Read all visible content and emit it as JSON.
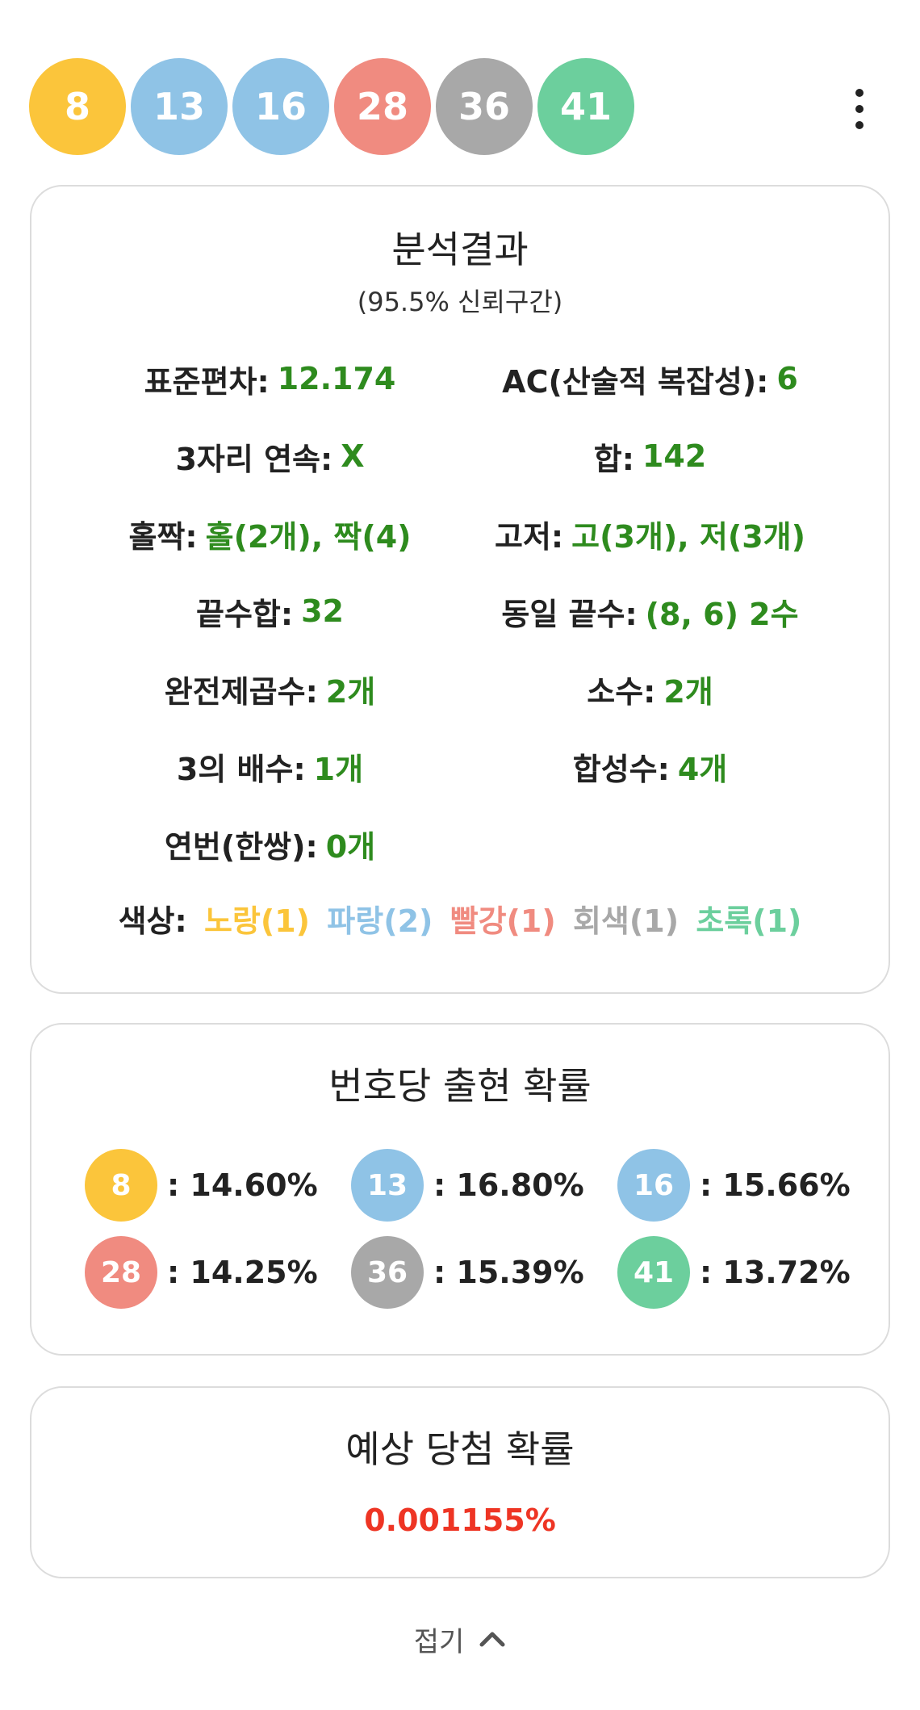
{
  "colors": {
    "yellow": "#fbc53b",
    "blue": "#8fc3e6",
    "red": "#f08b80",
    "gray": "#a8a8a8",
    "green": "#6ccf9d",
    "value_green": "#2e8b1e",
    "win_red": "#ee3524"
  },
  "balls": [
    {
      "number": "8",
      "color": "#fbc53b"
    },
    {
      "number": "13",
      "color": "#8fc3e6"
    },
    {
      "number": "16",
      "color": "#8fc3e6"
    },
    {
      "number": "28",
      "color": "#f08b80"
    },
    {
      "number": "36",
      "color": "#a8a8a8"
    },
    {
      "number": "41",
      "color": "#6ccf9d"
    }
  ],
  "menu_icon": "more-vertical-icon",
  "analysis": {
    "title": "분석결과",
    "subtitle": "(95.5% 신뢰구간)",
    "stats": [
      {
        "label": "표준편차:",
        "value": "12.174"
      },
      {
        "label": "AC(산술적 복잡성):",
        "value": "6"
      },
      {
        "label": "3자리 연속:",
        "value": "X"
      },
      {
        "label": "합:",
        "value": "142"
      },
      {
        "label": "홀짝:",
        "value": "홀(2개), 짝(4)"
      },
      {
        "label": "고저:",
        "value": "고(3개), 저(3개)"
      },
      {
        "label": "끝수합:",
        "value": "32"
      },
      {
        "label": "동일 끝수:",
        "value": "(8, 6) 2수"
      },
      {
        "label": "완전제곱수:",
        "value": "2개"
      },
      {
        "label": "소수:",
        "value": "2개"
      },
      {
        "label": "3의 배수:",
        "value": "1개"
      },
      {
        "label": "합성수:",
        "value": "4개"
      },
      {
        "label": "연번(한쌍):",
        "value": "0개"
      }
    ],
    "color_label": "색상:",
    "color_counts": [
      {
        "text": "노랑(1)",
        "color": "#fbc53b"
      },
      {
        "text": "파랑(2)",
        "color": "#8fc3e6"
      },
      {
        "text": "빨강(1)",
        "color": "#f08b80"
      },
      {
        "text": "회색(1)",
        "color": "#a8a8a8"
      },
      {
        "text": "초록(1)",
        "color": "#6ccf9d"
      }
    ]
  },
  "probability": {
    "title": "번호당 출현 확률",
    "items": [
      {
        "number": "8",
        "color": "#fbc53b",
        "value": ": 14.60%"
      },
      {
        "number": "13",
        "color": "#8fc3e6",
        "value": ": 16.80%"
      },
      {
        "number": "16",
        "color": "#8fc3e6",
        "value": ": 15.66%"
      },
      {
        "number": "28",
        "color": "#f08b80",
        "value": ": 14.25%"
      },
      {
        "number": "36",
        "color": "#a8a8a8",
        "value": ": 15.39%"
      },
      {
        "number": "41",
        "color": "#6ccf9d",
        "value": ": 13.72%"
      }
    ]
  },
  "winning": {
    "title": "예상 당첨 확률",
    "value": "0.001155%"
  },
  "fold": {
    "label": "접기",
    "icon": "chevron-up-icon"
  }
}
